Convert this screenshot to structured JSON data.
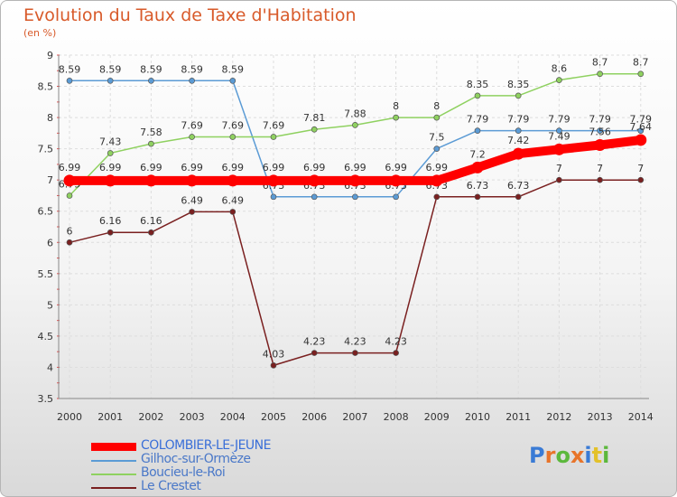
{
  "title": "Evolution du Taux de Taxe d'Habitation",
  "subtitle": "(en %)",
  "logo": {
    "text": "Proxiti",
    "colors": [
      "#3a7bd5",
      "#e8742a",
      "#5cb83c",
      "#e8742a",
      "#3a7bd5",
      "#e3c12a",
      "#5cb83c"
    ]
  },
  "chart_data": {
    "type": "line",
    "x": [
      2000,
      2001,
      2002,
      2003,
      2004,
      2005,
      2006,
      2007,
      2008,
      2009,
      2010,
      2011,
      2012,
      2013,
      2014
    ],
    "ylim": [
      3.5,
      9
    ],
    "yticks": [
      "3.5",
      "4",
      "4.5",
      "5",
      "5.5",
      "6",
      "6.5",
      "7",
      "7.5",
      "8",
      "8.5",
      "9"
    ],
    "grid": true,
    "series": [
      {
        "name": "Gilhoc-sur-Ormèze",
        "color": "#5b9bd5",
        "width": 1.5,
        "values": [
          8.59,
          8.59,
          8.59,
          8.59,
          8.59,
          6.73,
          6.73,
          6.73,
          6.73,
          7.5,
          7.79,
          7.79,
          7.79,
          7.79,
          7.79
        ],
        "labels": [
          "8.59",
          "8.59",
          "8.59",
          "8.59",
          "8.59",
          "6.73",
          "6.73",
          "6.73",
          "6.73",
          "7.5",
          "7.79",
          "7.79",
          "7.79",
          "7.79",
          "7.79"
        ]
      },
      {
        "name": "Boucieu-le-Roi",
        "color": "#8fd160",
        "width": 1.5,
        "values": [
          6.75,
          7.43,
          7.58,
          7.69,
          7.69,
          7.69,
          7.81,
          7.88,
          8,
          8,
          8.35,
          8.35,
          8.6,
          8.7,
          8.7
        ],
        "labels": [
          "6.75",
          "7.43",
          "7.58",
          "7.69",
          "7.69",
          "7.69",
          "7.81",
          "7.88",
          "8",
          "8",
          "8.35",
          "8.35",
          "8.6",
          "8.7",
          "8.7"
        ]
      },
      {
        "name": "Le Crestet",
        "color": "#7a2020",
        "width": 1.5,
        "values": [
          6,
          6.16,
          6.16,
          6.49,
          6.49,
          4.03,
          4.23,
          4.23,
          4.23,
          6.73,
          6.73,
          6.73,
          7,
          7,
          7
        ],
        "labels": [
          "6",
          "6.16",
          "6.16",
          "6.49",
          "6.49",
          "4.03",
          "4.23",
          "4.23",
          "4.23",
          "6.73",
          "6.73",
          "6.73",
          "7",
          "7",
          "7"
        ]
      },
      {
        "name": "COLOMBIER-LE-JEUNE",
        "color": "#ff0000",
        "width": 10,
        "values": [
          6.99,
          6.99,
          6.99,
          6.99,
          6.99,
          6.99,
          6.99,
          6.99,
          6.99,
          6.99,
          7.2,
          7.42,
          7.49,
          7.56,
          7.64
        ],
        "labels": [
          "6.99",
          "6.99",
          "6.99",
          "6.99",
          "6.99",
          "6.99",
          "6.99",
          "6.99",
          "6.99",
          "6.99",
          "7.2",
          "7.42",
          "7.49",
          "7.56",
          "7.64"
        ]
      }
    ],
    "legend_order": [
      "COLOMBIER-LE-JEUNE",
      "Gilhoc-sur-Ormèze",
      "Boucieu-le-Roi",
      "Le Crestet"
    ]
  }
}
